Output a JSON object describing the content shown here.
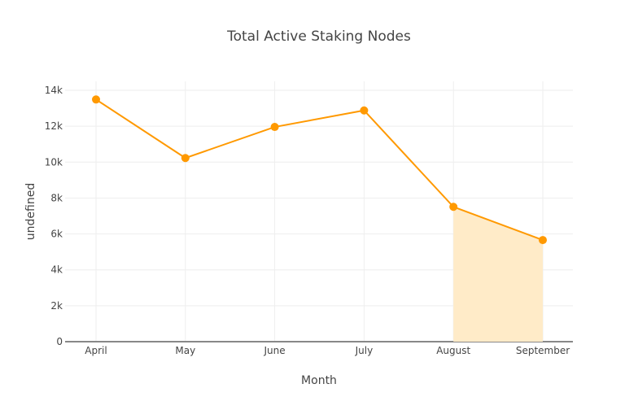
{
  "chart_data": {
    "type": "line",
    "title": "Total Active Staking Nodes",
    "xlabel": "Month",
    "ylabel": "undefined",
    "categories": [
      "April",
      "May",
      "June",
      "July",
      "August",
      "September"
    ],
    "series": [
      {
        "values": [
          13490,
          10230,
          11960,
          12880,
          7510,
          5660
        ]
      }
    ],
    "shaded_area": {
      "from": "August",
      "to": "September"
    },
    "ylim": [
      0,
      14500
    ],
    "yticks": [
      0,
      2000,
      4000,
      6000,
      8000,
      10000,
      12000,
      14000
    ],
    "ytick_labels": [
      "0",
      "2k",
      "4k",
      "6k",
      "8k",
      "10k",
      "12k",
      "14k"
    ],
    "grid": true,
    "colors": {
      "line": "#ff9900",
      "fill": "#ffebc8"
    }
  }
}
